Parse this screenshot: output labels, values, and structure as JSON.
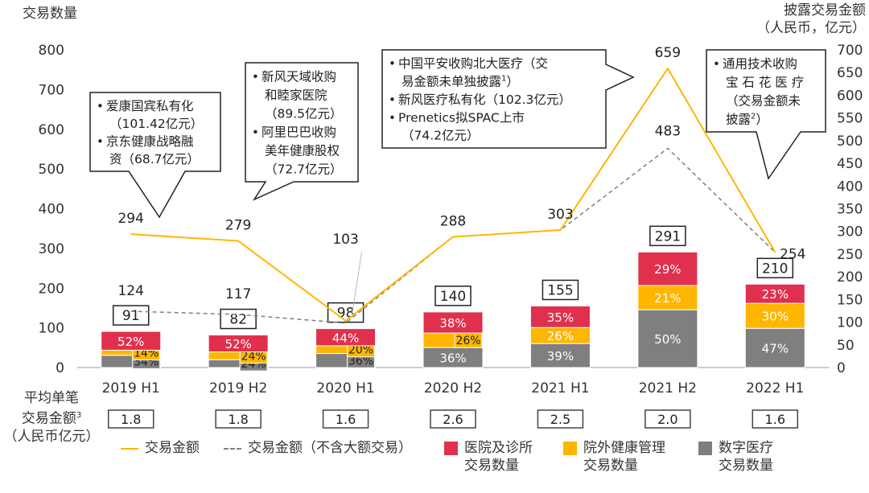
{
  "chart_data": {
    "type": "bar",
    "title_left": "交易数量",
    "title_right": [
      "披露交易金额",
      "（人民币，亿元）"
    ],
    "categories": [
      "2019 H1",
      "2019 H2",
      "2020 H1",
      "2020 H2",
      "2021 H1",
      "2021 H2",
      "2022 H1"
    ],
    "y_left": {
      "min": 0,
      "max": 800,
      "step": 100
    },
    "y_right": {
      "min": 0,
      "max": 700,
      "step": 50
    },
    "bar_totals": [
      91,
      82,
      98,
      140,
      155,
      291,
      210
    ],
    "bar_series": [
      {
        "name": "数字医疗交易数量",
        "color": "#7f7f7f",
        "share_pct": [
          34,
          24,
          36,
          36,
          39,
          50,
          47
        ]
      },
      {
        "name": "院外健康管理交易数量",
        "color": "#ffb600",
        "share_pct": [
          14,
          24,
          20,
          26,
          26,
          21,
          30
        ]
      },
      {
        "name": "医院及诊所交易数量",
        "color": "#e0304e",
        "share_pct": [
          52,
          52,
          44,
          38,
          35,
          29,
          23
        ]
      }
    ],
    "line_series": [
      {
        "name": "交易金额",
        "color": "#ffb600",
        "values": [
          294,
          279,
          103,
          288,
          303,
          659,
          254
        ]
      },
      {
        "name": "交易金额（不含大额交易）",
        "color": "#7f7f7f",
        "values": [
          124,
          117,
          98,
          288,
          303,
          483,
          254
        ]
      }
    ],
    "avg_deal_size": {
      "label": [
        "平均单笔",
        "交易金额",
        "（人民币亿元）"
      ],
      "label_footnote": "3",
      "values": [
        "1.8",
        "1.8",
        "1.6",
        "2.6",
        "2.5",
        "2.0",
        "1.6"
      ]
    },
    "legend_placement": "bottom",
    "legend": [
      {
        "type": "line",
        "label": [
          "交易金额"
        ],
        "color": "#ffb600"
      },
      {
        "type": "dashed",
        "label": [
          "交易金额（不含大额交易）"
        ],
        "color": "#7f7f7f"
      },
      {
        "type": "box",
        "label": [
          "医院及诊所",
          "交易数量"
        ],
        "color": "#e0304e"
      },
      {
        "type": "box",
        "label": [
          "院外健康管理",
          "交易数量"
        ],
        "color": "#ffb600"
      },
      {
        "type": "box",
        "label": [
          "数字医疗",
          "交易数量"
        ],
        "color": "#7f7f7f"
      }
    ],
    "callouts": [
      {
        "lines": [
          {
            "b": "•",
            "t": "爱康国宾私有化"
          },
          {
            "t": "（101.42亿元）"
          },
          {
            "b": "•",
            "t": "京东健康战略融"
          },
          {
            "t": "资（68.7亿元）"
          }
        ]
      },
      {
        "lines": [
          {
            "b": "•",
            "t": "新风天域收购"
          },
          {
            "t": "和睦家医院"
          },
          {
            "t": "（89.5亿元）"
          },
          {
            "b": "•",
            "t": "阿里巴巴收购"
          },
          {
            "t": "美年健康股权"
          },
          {
            "t": "（72.7亿元）"
          }
        ]
      },
      {
        "lines": [
          {
            "b": "•",
            "t": "中国平安收购北大医疗（交"
          },
          {
            "t": "易金额未单独披露",
            "sup": "1",
            "after": "）"
          },
          {
            "b": "•",
            "t": "新风医疗私有化（102.3亿元）"
          },
          {
            "b": "•",
            "t": "Prenetics拟SPAC上市"
          },
          {
            "t": "（74.2亿元）"
          }
        ]
      },
      {
        "lines": [
          {
            "b": "•",
            "t": "通用技术收购"
          },
          {
            "t": "宝 石 花 医 疗"
          },
          {
            "t": "（交易金额未"
          },
          {
            "t": "披露",
            "sup": "2",
            "after": "）"
          }
        ]
      }
    ]
  }
}
